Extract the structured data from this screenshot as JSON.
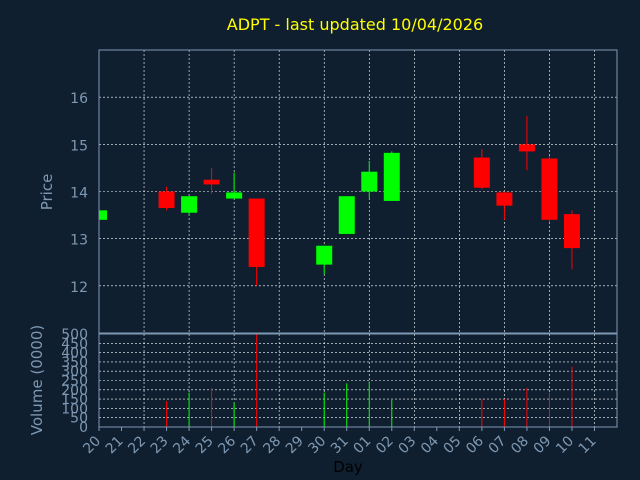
{
  "chart_data": {
    "type": "candlestick",
    "title": "ADPT - last updated 10/04/2026",
    "price_panel": {
      "ylabel": "Price",
      "ylim": [
        11.0,
        17.0
      ],
      "yticks": [
        "12",
        "13",
        "14",
        "15",
        "16"
      ]
    },
    "volume_panel": {
      "ylabel": "Volume (0000)",
      "ylim": [
        0,
        500
      ],
      "yticks": [
        "0",
        "50",
        "100",
        "150",
        "200",
        "250",
        "300",
        "350",
        "400",
        "450",
        "500"
      ]
    },
    "xlabel": "Day",
    "x": [
      "20",
      "21",
      "22",
      "23",
      "24",
      "25",
      "26",
      "27",
      "28",
      "29",
      "30",
      "31",
      "01",
      "02",
      "03",
      "04",
      "05",
      "06",
      "07",
      "08",
      "09",
      "10",
      "11"
    ],
    "candles": [
      {
        "day": "20",
        "open": 13.4,
        "close": 13.6,
        "high": 13.6,
        "low": 13.4,
        "volume": 0
      },
      {
        "day": "23",
        "open": 14.0,
        "close": 13.65,
        "high": 14.1,
        "low": 13.6,
        "volume": 140
      },
      {
        "day": "24",
        "open": 13.55,
        "close": 13.9,
        "high": 13.9,
        "low": 13.5,
        "volume": 185
      },
      {
        "day": "25",
        "open": 14.25,
        "close": 14.15,
        "high": 14.5,
        "low": 13.95,
        "volume": 210
      },
      {
        "day": "26",
        "open": 13.85,
        "close": 13.98,
        "high": 14.4,
        "low": 13.85,
        "volume": 130
      },
      {
        "day": "27",
        "open": 13.85,
        "close": 12.4,
        "high": 13.85,
        "low": 12.0,
        "volume": 500
      },
      {
        "day": "30",
        "open": 12.45,
        "close": 12.85,
        "high": 12.85,
        "low": 12.25,
        "volume": 185
      },
      {
        "day": "31",
        "open": 13.1,
        "close": 13.9,
        "high": 13.9,
        "low": 13.1,
        "volume": 235
      },
      {
        "day": "01",
        "open": 14.0,
        "close": 14.42,
        "high": 14.65,
        "low": 13.85,
        "volume": 245
      },
      {
        "day": "02",
        "open": 13.8,
        "close": 14.82,
        "high": 14.85,
        "low": 13.8,
        "volume": 145
      },
      {
        "day": "06",
        "open": 14.72,
        "close": 14.08,
        "high": 14.9,
        "low": 14.05,
        "volume": 150
      },
      {
        "day": "07",
        "open": 13.98,
        "close": 13.7,
        "high": 14.0,
        "low": 13.4,
        "volume": 150
      },
      {
        "day": "08",
        "open": 15.0,
        "close": 14.85,
        "high": 15.6,
        "low": 14.45,
        "volume": 210
      },
      {
        "day": "09",
        "open": 14.7,
        "close": 13.4,
        "high": 14.75,
        "low": 13.35,
        "volume": 185
      },
      {
        "day": "10",
        "open": 13.52,
        "close": 12.8,
        "high": 13.6,
        "low": 12.35,
        "volume": 325
      }
    ],
    "colors": {
      "background": "#0f1f30",
      "up": "#00ff00",
      "down": "#ff0000",
      "grid": "#ffffff",
      "axis_text": "#7f99b3",
      "title": "#ffff00",
      "xlabel": "#000000"
    },
    "grid": true
  }
}
